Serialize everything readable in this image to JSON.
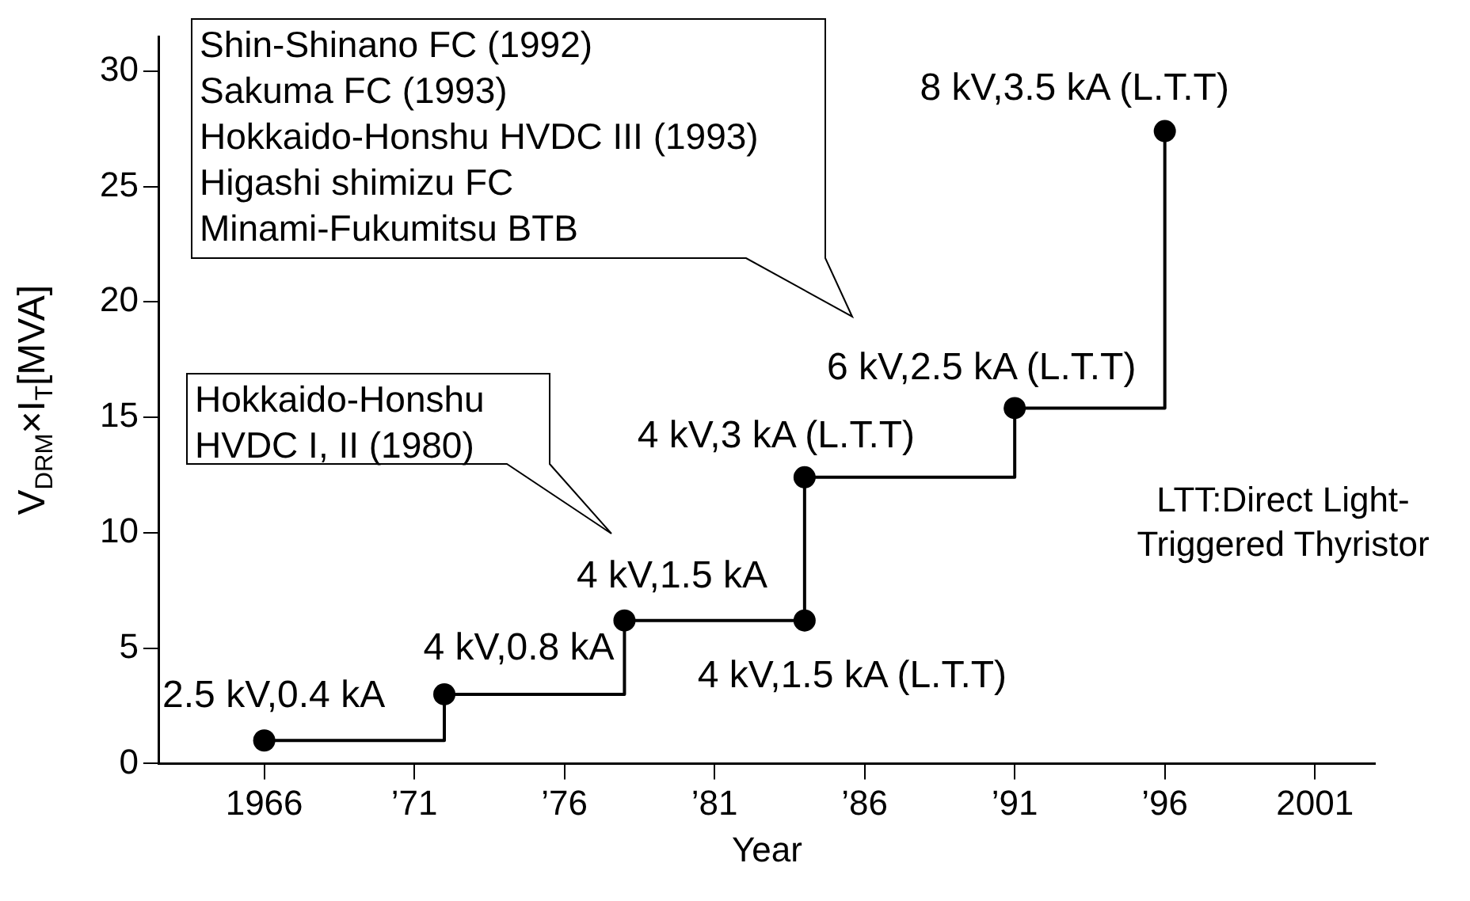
{
  "chart_data": {
    "type": "step",
    "xlabel": "Year",
    "ylabel": "V$_{DRM}$×I$_{T}$[MVA]",
    "x": [
      1966,
      1972,
      1978,
      1984,
      1984,
      1991,
      1996
    ],
    "series": [
      {
        "color": "#000000",
        "values": [
          1,
          3,
          6.2,
          6.2,
          12.4,
          15.4,
          27.4
        ]
      }
    ],
    "xlim": [
      1962.5,
      2003
    ],
    "xticks": [
      {
        "value": 1966,
        "label": "1966"
      },
      {
        "value": 1971,
        "label": "’71"
      },
      {
        "value": 1976,
        "label": "’76"
      },
      {
        "value": 1981,
        "label": "’81"
      },
      {
        "value": 1986,
        "label": "’86"
      },
      {
        "value": 1991,
        "label": "’91"
      },
      {
        "value": 1996,
        "label": "’96"
      },
      {
        "value": 2001,
        "label": "2001"
      }
    ],
    "ylim": [
      0,
      31.5
    ],
    "yticks": [
      0,
      5,
      10,
      15,
      20,
      25,
      30
    ],
    "grid": false,
    "legend": false,
    "marker": "circle",
    "line_style": "solid",
    "annotations": [
      {
        "text": "2.5 kV,0.4 kA",
        "x": 1966,
        "y": 1
      },
      {
        "text": "4 kV,0.8 kA",
        "x": 1972,
        "y": 3
      },
      {
        "text": "4 kV,1.5 kA",
        "x": 1978,
        "y": 6.2
      },
      {
        "text": "4 kV,1.5 kA (L.T.T)",
        "x": 1984,
        "y": 6.2
      },
      {
        "text": "4 kV,3 kA (L.T.T)",
        "x": 1984,
        "y": 12.4
      },
      {
        "text": "6 kV,2.5 kA (L.T.T)",
        "x": 1991,
        "y": 15.4
      },
      {
        "text": "8 kV,3.5 kA (L.T.T)",
        "x": 1996,
        "y": 27.4
      },
      "Shin-Shinano FC (1992)\nSakuma FC (1993)\nHokkaido-Honshu HVDC III (1993)\nHigashi shimizu FC\nMinami-Fukumitsu BTB",
      "Hokkaido-Honshu\nHVDC I, II (1980)",
      "LTT:Direct Light-\nTriggered Thyristor"
    ]
  }
}
